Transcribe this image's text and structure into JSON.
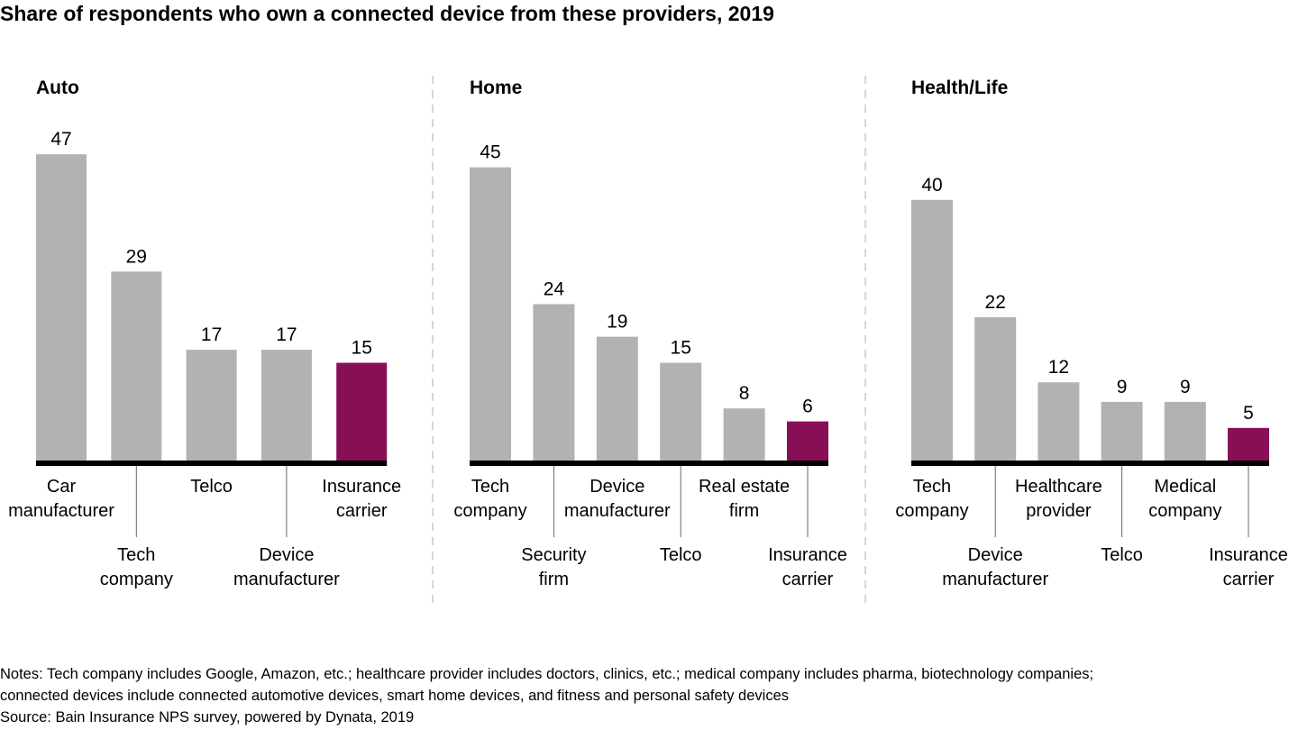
{
  "chart_data": [
    {
      "type": "bar",
      "title": "Auto",
      "categories": [
        "Car manufacturer",
        "Tech company",
        "Telco",
        "Device manufacturer",
        "Insurance carrier"
      ],
      "label_lines": [
        [
          "Car",
          "manufacturer"
        ],
        [
          "Tech",
          "company"
        ],
        [
          "Telco"
        ],
        [
          "Device",
          "manufacturer"
        ],
        [
          "Insurance",
          "carrier"
        ]
      ],
      "values": [
        47,
        29,
        17,
        17,
        15
      ],
      "highlight_index": 4,
      "ylim": [
        0,
        50
      ],
      "xlabel": "",
      "ylabel": "",
      "grid": false
    },
    {
      "type": "bar",
      "title": "Home",
      "categories": [
        "Tech company",
        "Security firm",
        "Device manufacturer",
        "Telco",
        "Real estate firm",
        "Insurance carrier"
      ],
      "label_lines": [
        [
          "Tech",
          "company"
        ],
        [
          "Security",
          "firm"
        ],
        [
          "Device",
          "manufacturer"
        ],
        [
          "Telco"
        ],
        [
          "Real estate",
          "firm"
        ],
        [
          "Insurance",
          "carrier"
        ]
      ],
      "values": [
        45,
        24,
        19,
        15,
        8,
        6
      ],
      "highlight_index": 5,
      "ylim": [
        0,
        50
      ],
      "xlabel": "",
      "ylabel": "",
      "grid": false
    },
    {
      "type": "bar",
      "title": "Health/Life",
      "categories": [
        "Tech company",
        "Device manufacturer",
        "Healthcare provider",
        "Telco",
        "Medical company",
        "Insurance carrier"
      ],
      "label_lines": [
        [
          "Tech",
          "company"
        ],
        [
          "Device",
          "manufacturer"
        ],
        [
          "Healthcare",
          "provider"
        ],
        [
          "Telco"
        ],
        [
          "Medical",
          "company"
        ],
        [
          "Insurance",
          "carrier"
        ]
      ],
      "values": [
        40,
        22,
        12,
        9,
        9,
        5
      ],
      "highlight_index": 5,
      "ylim": [
        0,
        50
      ],
      "xlabel": "",
      "ylabel": "",
      "grid": false
    }
  ],
  "header": {
    "title": "Share of respondents who own a connected device from these providers, 2019"
  },
  "footer": {
    "notes_line1": "Notes: Tech company includes Google, Amazon, etc.; healthcare provider includes doctors, clinics, etc.; medical company includes pharma, biotechnology companies;",
    "notes_line2": "connected devices include connected automotive devices, smart home devices, and fitness and personal safety devices",
    "source": "Source: Bain Insurance NPS survey, powered by Dynata, 2019"
  },
  "colors": {
    "bar": "#b2b2b2",
    "highlight": "#880e56",
    "axis": "#000000",
    "divider": "#c8c8c8",
    "connector": "#666666"
  }
}
